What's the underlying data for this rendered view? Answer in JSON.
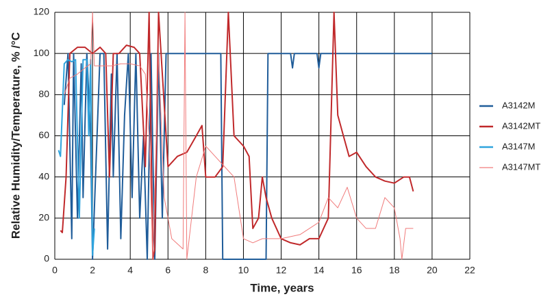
{
  "chart_data": {
    "type": "line",
    "xlabel": "Time, years",
    "ylabel": "Relative Humidity/Temperature, % /°C",
    "xlim": [
      0,
      22
    ],
    "xticks": [
      0,
      2,
      4,
      6,
      8,
      10,
      12,
      14,
      16,
      18,
      20,
      22
    ],
    "ylim": [
      0,
      120
    ],
    "yticks": [
      0,
      20,
      40,
      60,
      80,
      100,
      120
    ],
    "grid": true,
    "legend": "right",
    "series": [
      {
        "name": "A3142M",
        "color": "#1f5c99",
        "x": [
          0.5,
          0.7,
          0.9,
          1.0,
          1.2,
          1.4,
          1.5,
          1.7,
          1.9,
          2.0,
          2.4,
          2.6,
          2.8,
          3.0,
          3.1,
          3.3,
          3.5,
          3.7,
          3.9,
          4.1,
          4.3,
          4.5,
          4.7,
          4.9,
          5.1,
          5.3,
          5.5,
          5.7,
          5.9,
          6.2,
          7.0,
          8.0,
          8.8,
          8.9,
          9.0,
          10.0,
          11.2,
          11.3,
          12.5,
          12.6,
          12.7,
          13.9,
          14.0,
          14.1,
          16.0,
          18.0,
          20.0
        ],
        "values": [
          75,
          100,
          10,
          100,
          20,
          95,
          30,
          100,
          60,
          0,
          100,
          100,
          5,
          90,
          40,
          100,
          10,
          70,
          100,
          30,
          100,
          20,
          60,
          0,
          100,
          0,
          100,
          20,
          100,
          100,
          100,
          100,
          100,
          0,
          0,
          0,
          0,
          100,
          100,
          93,
          100,
          100,
          93,
          100,
          100,
          100,
          100
        ]
      },
      {
        "name": "A3142MT",
        "color": "#c0282a",
        "x": [
          0.3,
          0.4,
          0.6,
          0.8,
          1.2,
          1.6,
          2.0,
          2.4,
          2.7,
          2.9,
          3.1,
          3.4,
          3.8,
          4.2,
          4.5,
          4.8,
          5.0,
          5.2,
          5.3,
          5.5,
          6.0,
          6.5,
          7.0,
          7.5,
          7.8,
          8.0,
          8.5,
          8.9,
          9.2,
          9.5,
          10.0,
          10.3,
          10.5,
          10.8,
          11.0,
          11.2,
          11.5,
          12.0,
          12.5,
          13.0,
          13.5,
          14.0,
          14.5,
          14.8,
          15.0,
          15.3,
          15.6,
          16.0,
          16.5,
          17.0,
          17.5,
          18.0,
          18.5,
          18.8,
          19.0
        ],
        "values": [
          14,
          13,
          40,
          100,
          103,
          103,
          100,
          103,
          100,
          40,
          100,
          100,
          104,
          103,
          100,
          45,
          120,
          0,
          5,
          120,
          45,
          50,
          52,
          60,
          65,
          40,
          40,
          45,
          120,
          60,
          55,
          50,
          15,
          20,
          40,
          30,
          20,
          10,
          8,
          7,
          10,
          10,
          20,
          120,
          70,
          60,
          50,
          52,
          45,
          40,
          38,
          37,
          40,
          40,
          33
        ]
      },
      {
        "name": "A3147M",
        "color": "#2ea3dd",
        "x": [
          0.2,
          0.3,
          0.5,
          0.7,
          0.9,
          1.1,
          1.3,
          1.5,
          1.7,
          1.8,
          1.9,
          2.0,
          2.1
        ],
        "values": [
          53,
          50,
          95,
          97,
          96,
          97,
          20,
          97,
          97,
          60,
          97,
          2,
          15
        ]
      },
      {
        "name": "A3147MT",
        "color": "#f07a7a",
        "x": [
          0.5,
          0.8,
          1.2,
          1.6,
          1.9,
          2.0,
          2.1,
          2.5,
          3.0,
          3.5,
          4.0,
          4.5,
          4.8,
          5.0,
          5.2,
          5.5,
          5.8,
          6.2,
          6.8,
          6.9,
          7.0,
          7.5,
          8.0,
          8.5,
          9.0,
          9.5,
          10.0,
          10.5,
          11.0,
          12.0,
          13.0,
          14.0,
          14.5,
          15.0,
          15.5,
          16.0,
          16.5,
          17.0,
          17.5,
          18.0,
          18.3,
          18.4,
          18.6,
          19.0
        ],
        "values": [
          80,
          88,
          90,
          93,
          95,
          120,
          94,
          94,
          94,
          95,
          95,
          94,
          90,
          60,
          0,
          100,
          30,
          10,
          5,
          120,
          0,
          40,
          55,
          50,
          45,
          40,
          10,
          8,
          10,
          10,
          12,
          18,
          30,
          25,
          35,
          20,
          15,
          15,
          30,
          25,
          10,
          0,
          15,
          15
        ]
      }
    ]
  }
}
